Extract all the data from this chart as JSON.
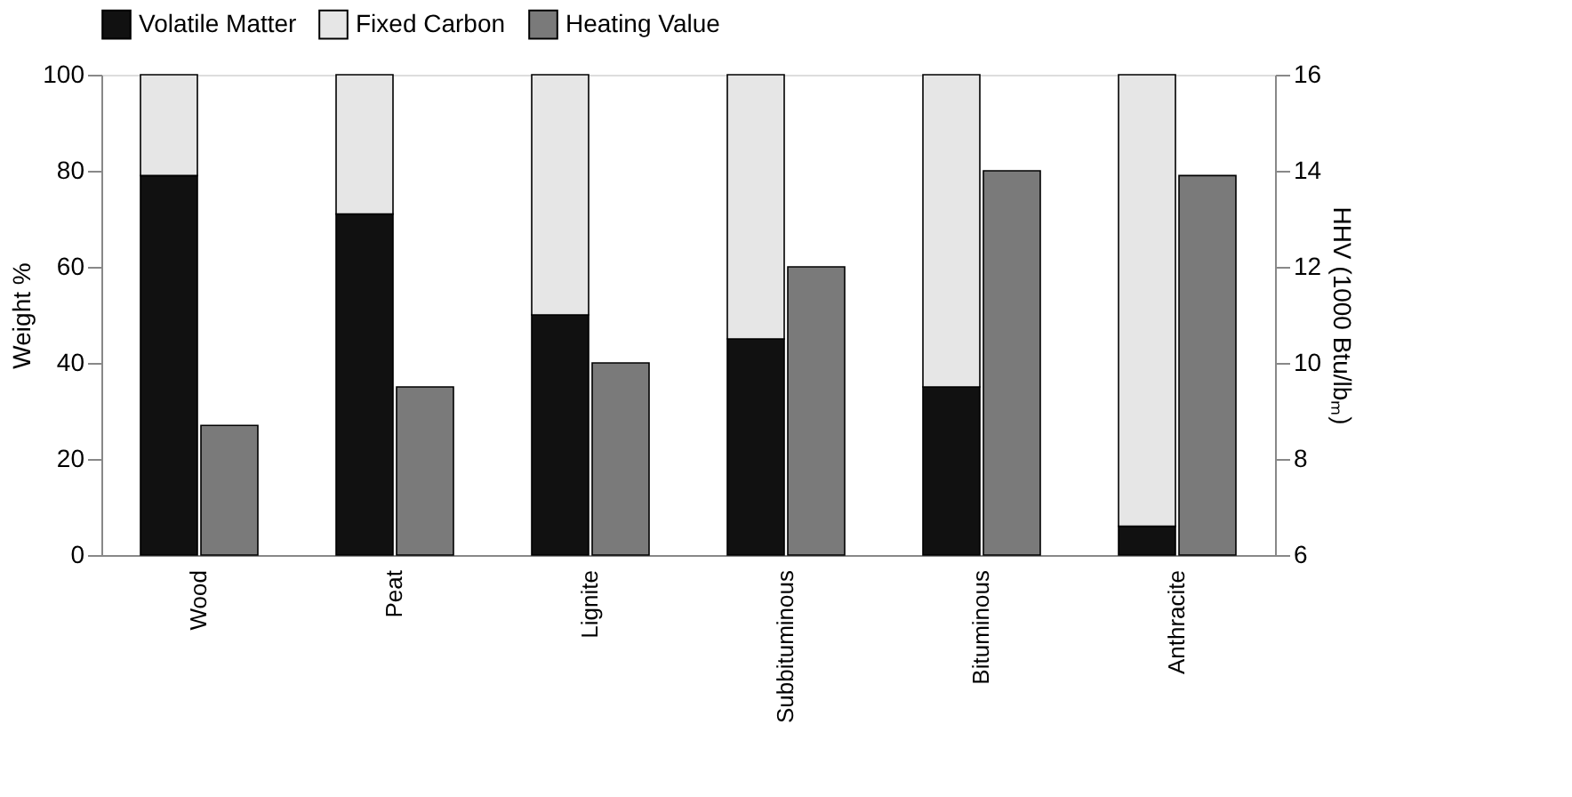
{
  "chart_data": {
    "type": "bar",
    "stacked": true,
    "categories": [
      "Wood",
      "Peat",
      "Lignite",
      "Subbituminous",
      "Bituminous",
      "Anthracite"
    ],
    "series": [
      {
        "name": "Volatile Matter",
        "color": "#111111",
        "values": [
          79,
          71,
          50,
          45,
          35,
          6
        ]
      },
      {
        "name": "Fixed Carbon",
        "color": "#e6e6e6",
        "values": [
          21,
          29,
          50,
          55,
          65,
          94
        ]
      },
      {
        "name": "Heating Value",
        "color": "#7a7a7a",
        "axis": "y2",
        "values": [
          8.7,
          9.5,
          10,
          12,
          14,
          13.9
        ]
      }
    ],
    "ylabel": "Weight %",
    "y2label": "HHV (1000 Btu/lbₘ)",
    "ylim": [
      0,
      100
    ],
    "yticks": [
      0,
      20,
      40,
      60,
      80,
      100
    ],
    "y2lim": [
      6,
      16
    ],
    "y2ticks": [
      6,
      8,
      10,
      12,
      14,
      16
    ],
    "legend": "top",
    "grid": false
  }
}
